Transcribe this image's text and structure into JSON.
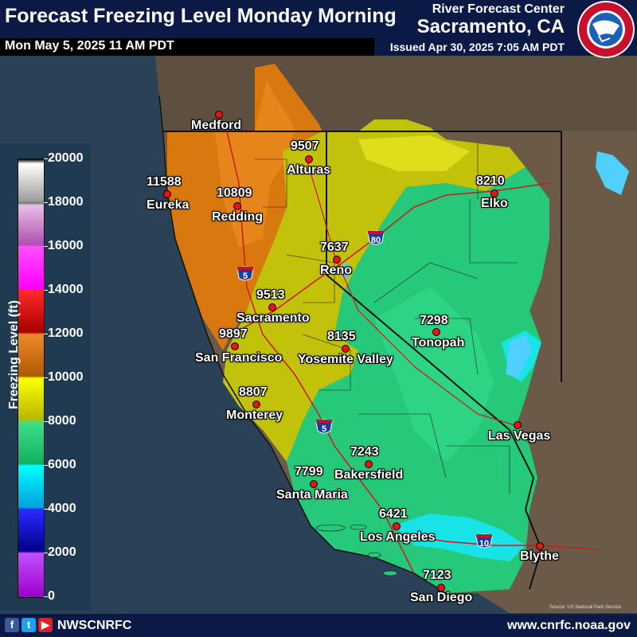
{
  "header": {
    "title": "Forecast Freezing Level Monday Morning",
    "valid_time": "Mon May 5, 2025 11 AM PDT",
    "center": "River Forecast Center",
    "office": "Sacramento, CA",
    "issued": "Issued Apr 30, 2025 7:05 AM PDT"
  },
  "legend": {
    "title": "Freezing Level (ft)",
    "ticks": [
      "20000",
      "18000",
      "16000",
      "14000",
      "12000",
      "10000",
      "8000",
      "6000",
      "4000",
      "2000",
      "0"
    ]
  },
  "cities": [
    {
      "name": "Medford",
      "value": ""
    },
    {
      "name": "Alturas",
      "value": "9507"
    },
    {
      "name": "Eureka",
      "value": "11588"
    },
    {
      "name": "Redding",
      "value": "10809"
    },
    {
      "name": "Elko",
      "value": "8210"
    },
    {
      "name": "Reno",
      "value": "7637"
    },
    {
      "name": "Sacramento",
      "value": "9513"
    },
    {
      "name": "San Francisco",
      "value": "9897"
    },
    {
      "name": "Yosemite Valley",
      "value": "8135"
    },
    {
      "name": "Tonopah",
      "value": "7298"
    },
    {
      "name": "Monterey",
      "value": "8807"
    },
    {
      "name": "Las Vegas",
      "value": ""
    },
    {
      "name": "Bakersfield",
      "value": "7243"
    },
    {
      "name": "Santa Maria",
      "value": "7799"
    },
    {
      "name": "Los Angeles",
      "value": "6421"
    },
    {
      "name": "Blythe",
      "value": ""
    },
    {
      "name": "San Diego",
      "value": "7123"
    }
  ],
  "highways": [
    "5",
    "80",
    "5",
    "10"
  ],
  "credit": "Source: US National Park Service",
  "footer": {
    "handle": "NWSCNRFC",
    "website": "www.cnrfc.noaa.gov"
  },
  "colors": {
    "header": "#0a1a44",
    "land": "#6b5a48",
    "ocean": "#2b4157",
    "city_dot": "#ee1111"
  }
}
